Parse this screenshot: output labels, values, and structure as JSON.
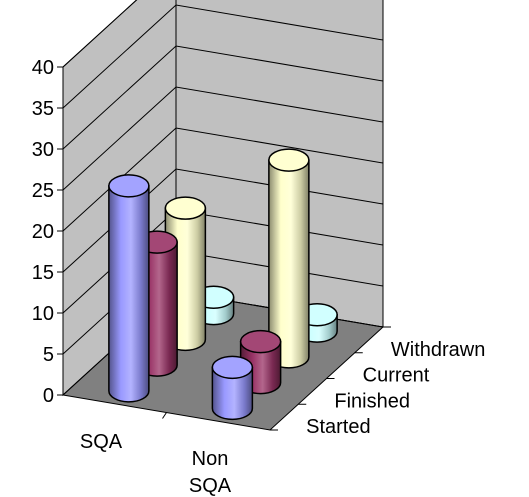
{
  "chart_data": {
    "type": "bar",
    "subtype": "3d-cylinder",
    "title": "",
    "xlabel": "",
    "ylabel": "",
    "ylim": [
      0,
      40
    ],
    "y_ticks": [
      "0",
      "5",
      "10",
      "15",
      "20",
      "25",
      "30",
      "35",
      "40"
    ],
    "categories": [
      "SQA",
      "Non SQA"
    ],
    "category_lines": [
      [
        "SQA"
      ],
      [
        "Non",
        "SQA"
      ]
    ],
    "series": [
      {
        "name": "Started",
        "values": [
          25,
          5
        ],
        "color": "#9999ff"
      },
      {
        "name": "Finished",
        "values": [
          15,
          5
        ],
        "color": "#993366"
      },
      {
        "name": "Current",
        "values": [
          16,
          24
        ],
        "color": "#ffffcc"
      },
      {
        "name": "Withdrawn",
        "values": [
          2,
          2
        ],
        "color": "#ccffff"
      }
    ],
    "grid": true,
    "floor_color": "#808080",
    "wall_color": "#c0c0c0"
  }
}
